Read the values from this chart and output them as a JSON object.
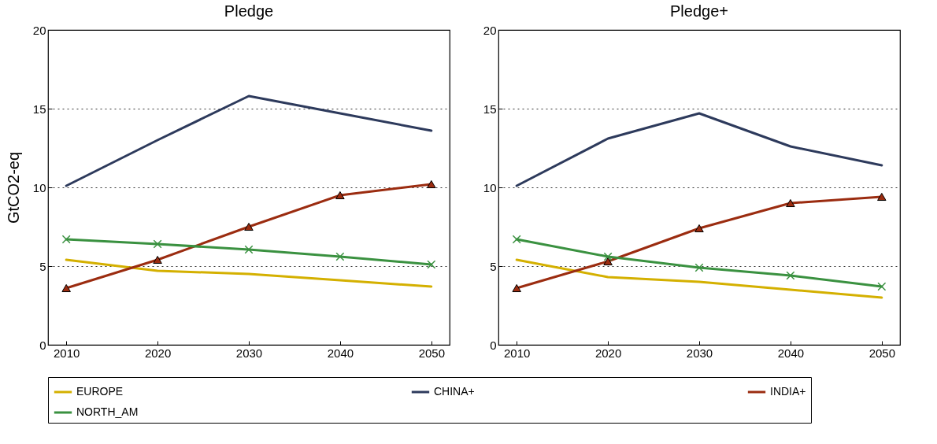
{
  "chart_data": [
    {
      "type": "line",
      "title": "Pledge",
      "ylabel": "GtCO2-eq",
      "x": [
        2010,
        2020,
        2030,
        2040,
        2050
      ],
      "xlim": [
        2008,
        2052
      ],
      "xticks": [
        2010,
        2020,
        2030,
        2040,
        2050
      ],
      "ylim": [
        0,
        20
      ],
      "yticks": [
        0,
        5,
        10,
        15,
        20
      ],
      "grid": "y",
      "legend": "bottom",
      "line_style": "solid",
      "series": [
        {
          "name": "EUROPE",
          "color": "#d4b000",
          "marker": "none",
          "values": [
            5.4,
            4.7,
            4.5,
            4.1,
            3.7
          ]
        },
        {
          "name": "CHINA+",
          "color": "#2d3a5c",
          "marker": "none",
          "values": [
            10.1,
            13.0,
            15.8,
            14.7,
            13.6
          ]
        },
        {
          "name": "INDIA+",
          "color": "#9b2c10",
          "marker": "triangle",
          "values": [
            3.6,
            5.4,
            7.5,
            9.5,
            10.2
          ]
        },
        {
          "name": "NORTH_AM",
          "color": "#3a9140",
          "marker": "cross",
          "values": [
            6.7,
            6.4,
            6.05,
            5.6,
            5.1
          ]
        }
      ]
    },
    {
      "type": "line",
      "title": "Pledge+",
      "x": [
        2010,
        2020,
        2030,
        2040,
        2050
      ],
      "xlim": [
        2008,
        2052
      ],
      "xticks": [
        2010,
        2020,
        2030,
        2040,
        2050
      ],
      "ylim": [
        0,
        20
      ],
      "yticks": [
        0,
        5,
        10,
        15,
        20
      ],
      "grid": "y",
      "legend": "bottom",
      "line_style": "solid",
      "series": [
        {
          "name": "EUROPE",
          "color": "#d4b000",
          "marker": "none",
          "values": [
            5.4,
            4.3,
            4.0,
            3.5,
            3.0
          ]
        },
        {
          "name": "CHINA+",
          "color": "#2d3a5c",
          "marker": "none",
          "values": [
            10.1,
            13.1,
            14.7,
            12.6,
            11.4
          ]
        },
        {
          "name": "INDIA+",
          "color": "#9b2c10",
          "marker": "triangle",
          "values": [
            3.6,
            5.3,
            7.4,
            9.0,
            9.4
          ]
        },
        {
          "name": "NORTH_AM",
          "color": "#3a9140",
          "marker": "cross",
          "values": [
            6.7,
            5.6,
            4.9,
            4.4,
            3.7
          ]
        }
      ]
    }
  ]
}
